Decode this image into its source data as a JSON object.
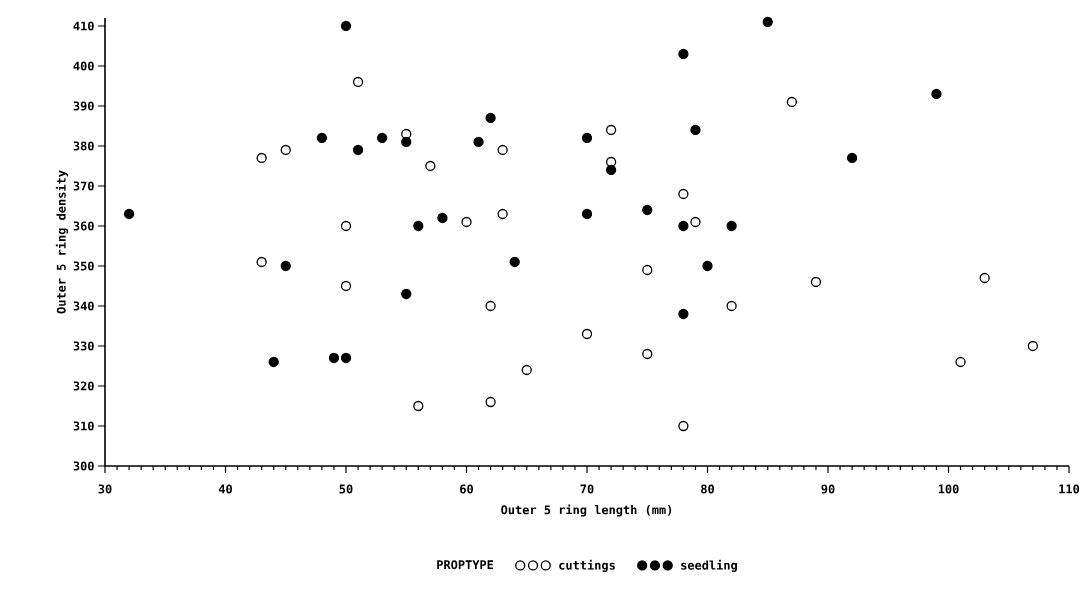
{
  "chart_data": {
    "type": "scatter",
    "xlabel": "Outer 5 ring length (mm)",
    "ylabel": "Outer 5 ring density",
    "legend_title": "PROPTYPE",
    "legend": "bottom",
    "marker": "circle",
    "grid": false,
    "xlim": [
      30,
      110
    ],
    "xticks": [
      30,
      40,
      50,
      60,
      70,
      80,
      90,
      100,
      110
    ],
    "ylim": [
      300,
      412
    ],
    "yticks": [
      300,
      310,
      320,
      330,
      340,
      350,
      360,
      370,
      380,
      390,
      400,
      410
    ],
    "series": [
      {
        "name": "cuttings",
        "color": "#ffffff",
        "x": [
          51,
          87,
          43,
          45,
          55,
          57,
          63,
          72,
          72,
          78,
          50,
          60,
          63,
          79,
          43,
          50,
          75,
          89,
          103,
          62,
          82,
          70,
          75,
          65,
          101,
          107,
          56,
          62,
          78
        ],
        "values": [
          396,
          391,
          377,
          379,
          383,
          375,
          379,
          384,
          376,
          368,
          360,
          361,
          363,
          361,
          351,
          345,
          349,
          346,
          347,
          340,
          340,
          333,
          328,
          324,
          326,
          330,
          315,
          316,
          310
        ]
      },
      {
        "name": "seedling",
        "color": "#000000",
        "x": [
          32,
          50,
          85,
          78,
          99,
          62,
          48,
          53,
          55,
          61,
          70,
          79,
          51,
          72,
          92,
          56,
          58,
          70,
          75,
          78,
          82,
          45,
          64,
          80,
          55,
          78,
          44,
          49,
          50
        ],
        "values": [
          363,
          410,
          411,
          403,
          393,
          387,
          382,
          382,
          381,
          381,
          382,
          384,
          379,
          374,
          377,
          360,
          362,
          363,
          364,
          360,
          360,
          350,
          351,
          350,
          343,
          338,
          326,
          327,
          327
        ]
      }
    ]
  }
}
